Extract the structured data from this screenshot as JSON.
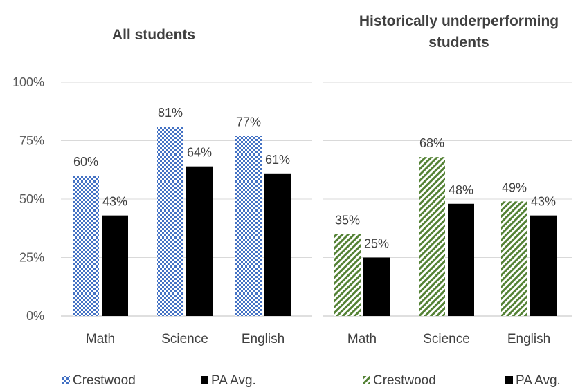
{
  "chart_data": [
    {
      "type": "bar",
      "title": "All students",
      "categories": [
        "Math",
        "Science",
        "English"
      ],
      "series": [
        {
          "name": "Crestwood",
          "values": [
            60,
            81,
            77
          ],
          "color": "#4472c4",
          "pattern": "checker"
        },
        {
          "name": "PA Avg.",
          "values": [
            43,
            64,
            61
          ],
          "color": "#000000",
          "pattern": "solid"
        }
      ],
      "data_labels": [
        [
          "60%",
          "81%",
          "77%"
        ],
        [
          "43%",
          "64%",
          "61%"
        ]
      ],
      "ylim": [
        0,
        100
      ],
      "yticks": [
        "0%",
        "25%",
        "50%",
        "75%",
        "100%"
      ],
      "grid": true,
      "legend_position": "bottom"
    },
    {
      "type": "bar",
      "title": "Historically underperforming students",
      "categories": [
        "Math",
        "Science",
        "English"
      ],
      "series": [
        {
          "name": "Crestwood",
          "values": [
            35,
            68,
            49
          ],
          "color": "#70ad47",
          "pattern": "diagonal"
        },
        {
          "name": "PA Avg.",
          "values": [
            25,
            48,
            43
          ],
          "color": "#000000",
          "pattern": "solid"
        }
      ],
      "data_labels": [
        [
          "35%",
          "68%",
          "49%"
        ],
        [
          "25%",
          "48%",
          "43%"
        ]
      ],
      "ylim": [
        0,
        100
      ],
      "grid": true,
      "legend_position": "bottom"
    }
  ]
}
